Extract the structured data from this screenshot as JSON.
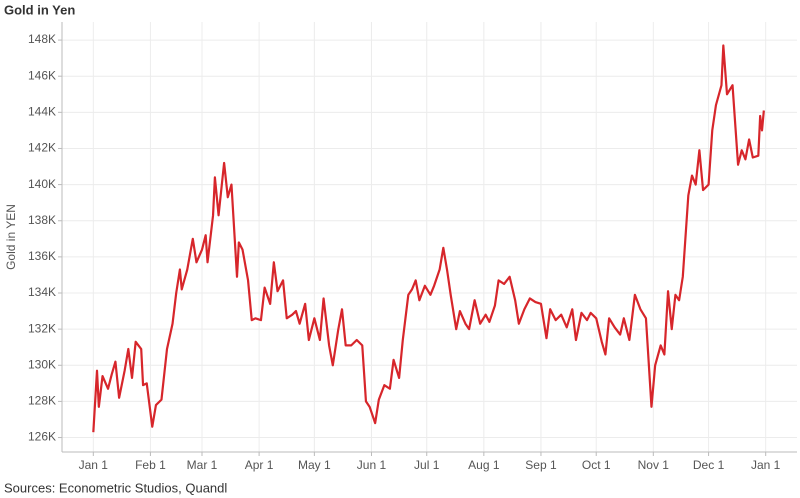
{
  "chart_data": {
    "type": "line",
    "title": "Gold in Yen",
    "y_label": "Gold in YEN",
    "source": "Sources: Econometric Studios, Quandl",
    "color": "#d7262b",
    "grid": true,
    "xlim": [
      -17,
      382
    ],
    "xticks": [
      {
        "value": 0,
        "label": "Jan 1"
      },
      {
        "value": 31,
        "label": "Feb 1"
      },
      {
        "value": 59,
        "label": "Mar 1"
      },
      {
        "value": 90,
        "label": "Apr 1"
      },
      {
        "value": 120,
        "label": "May 1"
      },
      {
        "value": 151,
        "label": "Jun 1"
      },
      {
        "value": 181,
        "label": "Jul 1"
      },
      {
        "value": 212,
        "label": "Aug 1"
      },
      {
        "value": 243,
        "label": "Sep 1"
      },
      {
        "value": 273,
        "label": "Oct 1"
      },
      {
        "value": 304,
        "label": "Nov 1"
      },
      {
        "value": 334,
        "label": "Dec 1"
      },
      {
        "value": 365,
        "label": "Jan 1"
      }
    ],
    "ylim": [
      125200,
      149000
    ],
    "yticks": [
      {
        "value": 126000,
        "label": "126K"
      },
      {
        "value": 128000,
        "label": "128K"
      },
      {
        "value": 130000,
        "label": "130K"
      },
      {
        "value": 132000,
        "label": "132K"
      },
      {
        "value": 134000,
        "label": "134K"
      },
      {
        "value": 136000,
        "label": "136K"
      },
      {
        "value": 138000,
        "label": "138K"
      },
      {
        "value": 140000,
        "label": "140K"
      },
      {
        "value": 142000,
        "label": "142K"
      },
      {
        "value": 144000,
        "label": "144K"
      },
      {
        "value": 146000,
        "label": "146K"
      },
      {
        "value": 148000,
        "label": "148K"
      }
    ],
    "x": [
      0,
      2,
      3,
      5,
      8,
      10,
      12,
      14,
      17,
      19,
      21,
      23,
      26,
      27,
      29,
      32,
      34,
      37,
      40,
      43,
      45,
      47,
      48,
      51,
      54,
      56,
      59,
      61,
      62,
      65,
      66,
      68,
      71,
      73,
      75,
      78,
      79,
      81,
      84,
      86,
      88,
      91,
      93,
      96,
      98,
      100,
      103,
      105,
      108,
      110,
      112,
      115,
      117,
      120,
      123,
      125,
      128,
      130,
      133,
      135,
      137,
      140,
      143,
      146,
      148,
      150,
      153,
      155,
      158,
      161,
      163,
      166,
      168,
      171,
      173,
      175,
      177,
      180,
      183,
      185,
      188,
      190,
      192,
      194,
      197,
      199,
      202,
      204,
      207,
      210,
      213,
      215,
      218,
      220,
      223,
      226,
      229,
      231,
      234,
      237,
      240,
      243,
      246,
      248,
      251,
      254,
      257,
      260,
      262,
      265,
      268,
      270,
      273,
      276,
      278,
      280,
      283,
      286,
      288,
      291,
      294,
      297,
      300,
      303,
      305,
      308,
      310,
      312,
      314,
      316,
      318,
      320,
      323,
      325,
      327,
      329,
      331,
      334,
      336,
      338,
      341,
      342,
      344,
      347,
      350,
      352,
      354,
      356,
      358,
      361,
      362,
      363,
      364
    ],
    "values": [
      126300,
      129700,
      127700,
      129400,
      128700,
      129500,
      130200,
      128200,
      129700,
      130900,
      129300,
      131300,
      130900,
      128900,
      129000,
      126600,
      127800,
      128100,
      130900,
      132300,
      134000,
      135300,
      134200,
      135300,
      137000,
      135700,
      136400,
      137200,
      135700,
      138300,
      140400,
      138300,
      141200,
      139300,
      140000,
      134900,
      136800,
      136400,
      134700,
      132500,
      132600,
      132500,
      134300,
      133400,
      135700,
      134100,
      134700,
      132600,
      132800,
      133000,
      132300,
      133400,
      131400,
      132600,
      131400,
      133700,
      131100,
      130000,
      132000,
      133100,
      131100,
      131100,
      131400,
      131100,
      128000,
      127700,
      126800,
      128100,
      128900,
      128700,
      130300,
      129300,
      131400,
      133900,
      134200,
      134700,
      133600,
      134400,
      133900,
      134400,
      135300,
      136500,
      135300,
      133900,
      132000,
      133000,
      132300,
      132000,
      133600,
      132300,
      132800,
      132400,
      133300,
      134700,
      134500,
      134900,
      133600,
      132300,
      133100,
      133700,
      133500,
      133400,
      131500,
      133100,
      132500,
      132800,
      132100,
      133100,
      131400,
      132900,
      132500,
      132900,
      132600,
      131300,
      130600,
      132600,
      132100,
      131700,
      132600,
      131400,
      133900,
      133100,
      132600,
      127700,
      130000,
      131100,
      130600,
      134100,
      132000,
      133900,
      133600,
      134900,
      139400,
      140500,
      140000,
      141900,
      139700,
      140000,
      143000,
      144400,
      145500,
      147700,
      145000,
      145500,
      141100,
      141900,
      141400,
      142500,
      141500,
      141600,
      143800,
      143000,
      144100
    ]
  }
}
